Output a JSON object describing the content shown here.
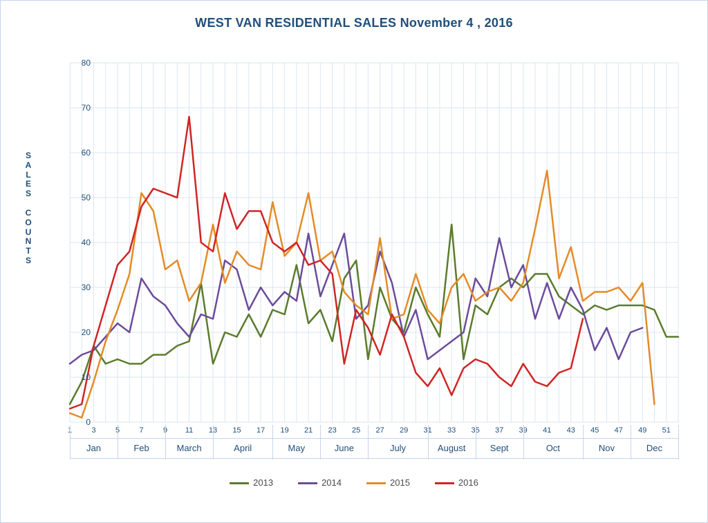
{
  "chart": {
    "type": "line",
    "title": "WEST VAN RESIDENTIAL SALES November 4 , 2016",
    "title_fontsize": 18,
    "title_color": "#1f4e79",
    "ylabel": "SALES COUNTS",
    "ylabel_fontsize": 12,
    "ylabel_color": "#1f4e79",
    "background_color": "#ffffff",
    "frame_border_color": "#c5d5ea",
    "grid_color": "#dbe6f1",
    "grid_on": true,
    "ylim": [
      0,
      80
    ],
    "ytick_step": 10,
    "xlim": [
      1,
      52
    ],
    "xticks": [
      1,
      3,
      5,
      7,
      9,
      11,
      13,
      15,
      17,
      19,
      21,
      23,
      25,
      27,
      29,
      31,
      33,
      35,
      37,
      39,
      41,
      43,
      45,
      47,
      49,
      51
    ],
    "tick_fontsize": 12,
    "tick_color": "#1f4e79",
    "line_width": 2.5,
    "months": [
      {
        "label": "Jan",
        "start": 1,
        "end": 5
      },
      {
        "label": "Feb",
        "start": 5,
        "end": 9
      },
      {
        "label": "March",
        "start": 9,
        "end": 13
      },
      {
        "label": "April",
        "start": 13,
        "end": 18
      },
      {
        "label": "May",
        "start": 18,
        "end": 22
      },
      {
        "label": "June",
        "start": 22,
        "end": 26
      },
      {
        "label": "July",
        "start": 26,
        "end": 31
      },
      {
        "label": "August",
        "start": 31,
        "end": 35
      },
      {
        "label": "Sept",
        "start": 35,
        "end": 39
      },
      {
        "label": "Oct",
        "start": 39,
        "end": 44
      },
      {
        "label": "Nov",
        "start": 44,
        "end": 48
      },
      {
        "label": "Dec",
        "start": 48,
        "end": 52
      }
    ],
    "series": [
      {
        "name": "2013",
        "color": "#5a7b2b",
        "values": [
          4,
          9,
          17,
          13,
          14,
          13,
          13,
          15,
          15,
          17,
          18,
          31,
          13,
          20,
          19,
          24,
          19,
          25,
          24,
          35,
          22,
          25,
          18,
          32,
          36,
          14,
          30,
          23,
          20,
          30,
          24,
          19,
          44,
          14,
          26,
          24,
          30,
          32,
          30,
          33,
          33,
          28,
          26,
          24,
          26,
          25,
          26,
          26,
          26,
          25,
          19,
          19
        ]
      },
      {
        "name": "2014",
        "color": "#6b4b9b",
        "values": [
          13,
          15,
          16,
          19,
          22,
          20,
          32,
          28,
          26,
          22,
          19,
          24,
          23,
          36,
          34,
          25,
          30,
          26,
          29,
          27,
          42,
          28,
          35,
          42,
          23,
          26,
          38,
          31,
          19,
          25,
          14,
          16,
          18,
          20,
          32,
          28,
          41,
          30,
          35,
          23,
          31,
          23,
          30,
          25,
          16,
          21,
          14,
          20,
          21,
          null,
          null,
          null
        ]
      },
      {
        "name": "2015",
        "color": "#e38b27",
        "values": [
          2,
          1,
          9,
          18,
          25,
          33,
          51,
          47,
          34,
          36,
          27,
          31,
          44,
          31,
          38,
          35,
          34,
          49,
          37,
          40,
          51,
          36,
          38,
          29,
          26,
          24,
          41,
          23,
          24,
          33,
          25,
          22,
          30,
          33,
          27,
          29,
          30,
          27,
          31,
          43,
          56,
          32,
          39,
          27,
          29,
          29,
          30,
          27,
          31,
          4,
          null,
          null
        ]
      },
      {
        "name": "2016",
        "color": "#d02424",
        "values": [
          3,
          4,
          17,
          26,
          35,
          38,
          48,
          52,
          51,
          50,
          68,
          40,
          38,
          51,
          43,
          47,
          47,
          40,
          38,
          40,
          35,
          36,
          33,
          13,
          25,
          21,
          15,
          24,
          19,
          11,
          8,
          12,
          6,
          12,
          14,
          13,
          10,
          8,
          13,
          9,
          8,
          11,
          12,
          23,
          null,
          null,
          null,
          null,
          null,
          null,
          null,
          null
        ]
      }
    ]
  }
}
